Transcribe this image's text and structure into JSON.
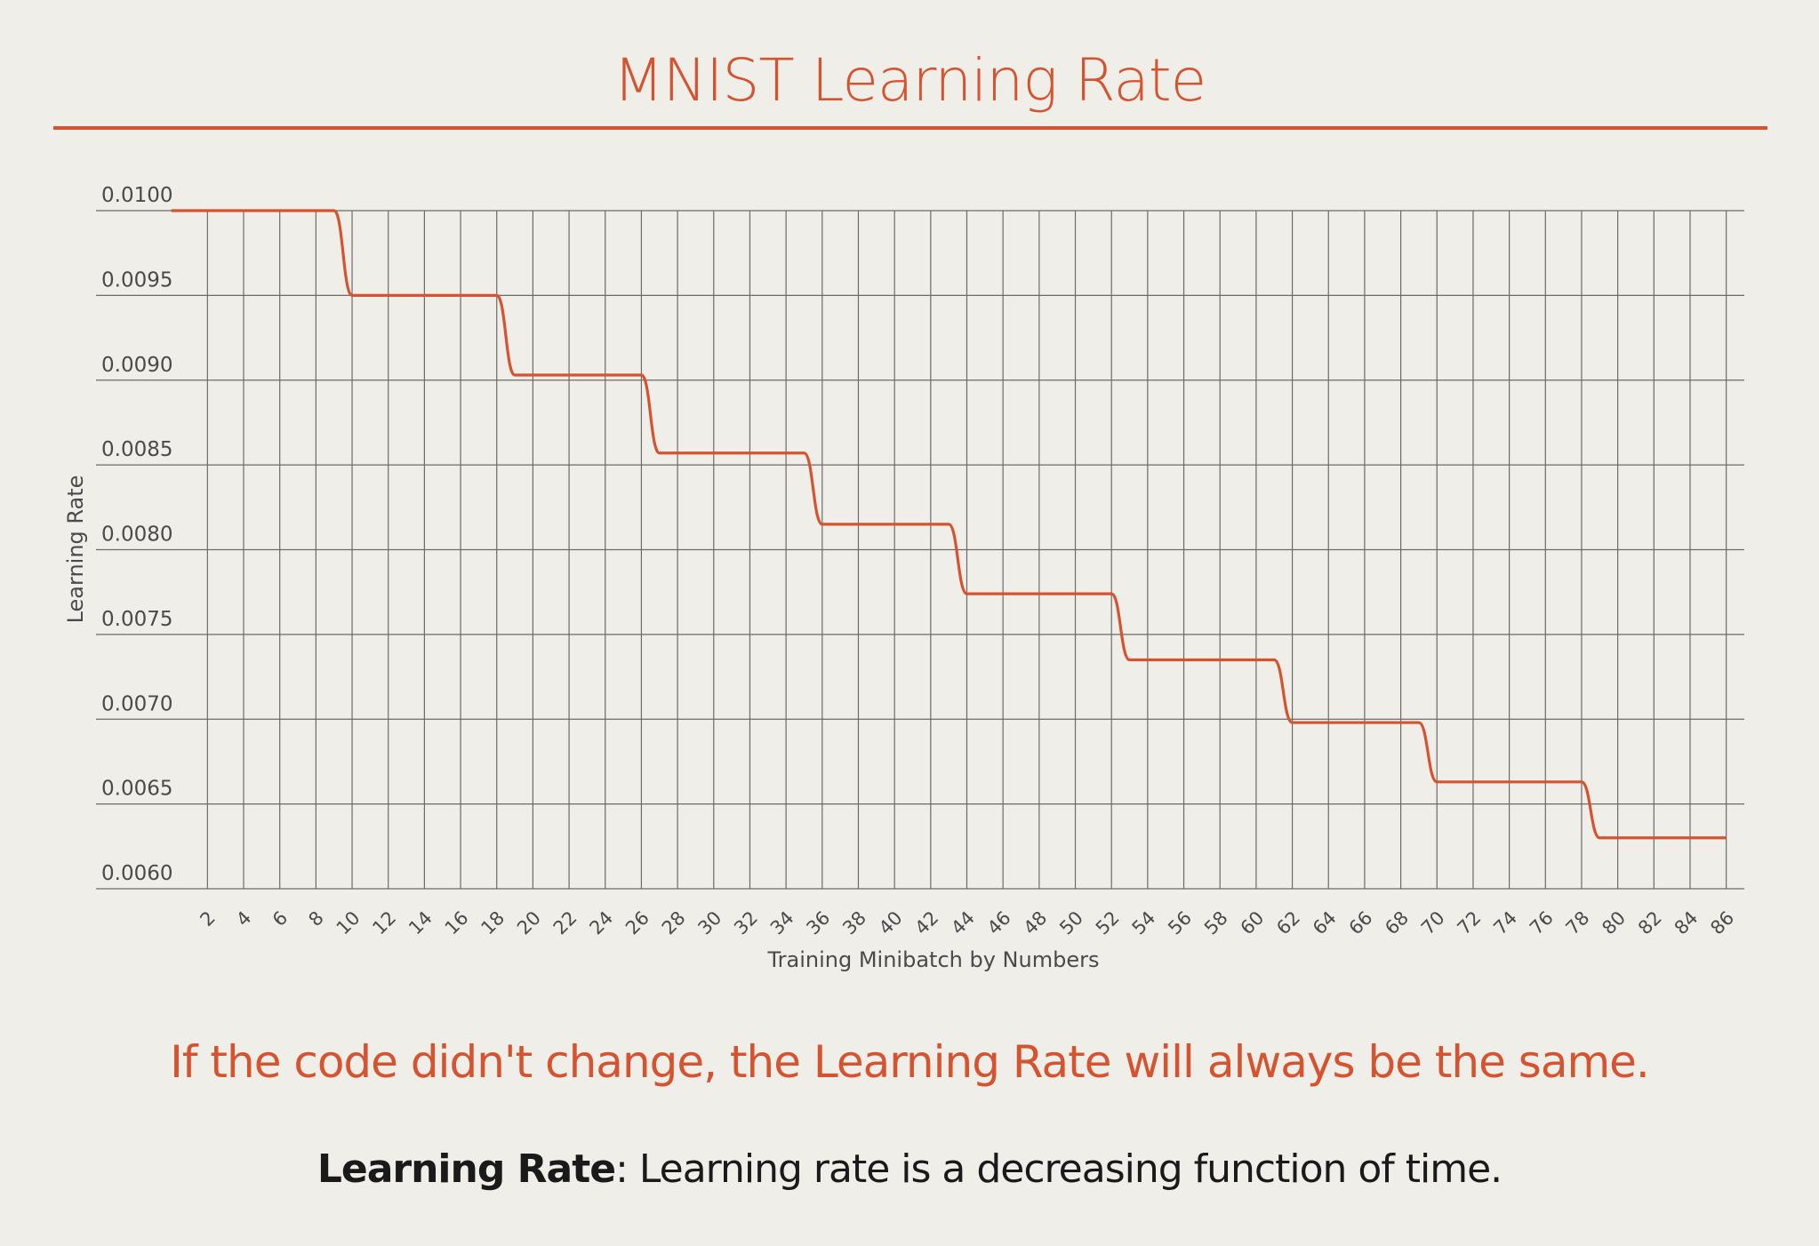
{
  "chart_data": {
    "type": "line",
    "title": "MNIST Learning Rate",
    "xlabel": "Training Minibatch by Numbers",
    "ylabel": "Learning Rate",
    "ylim": [
      0.006,
      0.01
    ],
    "xlim": [
      1,
      87
    ],
    "x_tick_labels": [
      "2",
      "4",
      "6",
      "8",
      "10",
      "12",
      "14",
      "16",
      "18",
      "20",
      "22",
      "24",
      "26",
      "28",
      "30",
      "32",
      "34",
      "36",
      "38",
      "40",
      "42",
      "44",
      "46",
      "48",
      "50",
      "52",
      "54",
      "56",
      "58",
      "60",
      "62",
      "64",
      "66",
      "68",
      "70",
      "72",
      "74",
      "76",
      "78",
      "80",
      "82",
      "84",
      "86"
    ],
    "y_tick_labels": [
      "0.0100",
      "0.0095",
      "0.0090",
      "0.0085",
      "0.0080",
      "0.0075",
      "0.0070",
      "0.0065",
      "0.0060"
    ],
    "grid": true,
    "line_color": "#d5532f",
    "steps": [
      {
        "x_start": 0,
        "x_end": 9,
        "value": 0.01
      },
      {
        "x_start": 10,
        "x_end": 18,
        "value": 0.0095
      },
      {
        "x_start": 19,
        "x_end": 26,
        "value": 0.00903
      },
      {
        "x_start": 27,
        "x_end": 35,
        "value": 0.00857
      },
      {
        "x_start": 36,
        "x_end": 43,
        "value": 0.00815
      },
      {
        "x_start": 44,
        "x_end": 52,
        "value": 0.00774
      },
      {
        "x_start": 53,
        "x_end": 61,
        "value": 0.00735
      },
      {
        "x_start": 62,
        "x_end": 69,
        "value": 0.00698
      },
      {
        "x_start": 70,
        "x_end": 78,
        "value": 0.00663
      },
      {
        "x_start": 79,
        "x_end": 86,
        "value": 0.0063
      }
    ]
  },
  "caption": "If the code didn't change, the Learning Rate will always be the same.",
  "definition": {
    "term": "Learning Rate",
    "text": ": Learning rate is a decreasing function of time."
  },
  "colors": {
    "accent": "#d5532f",
    "background": "#f0eee9",
    "grid": "#6b6b6b"
  }
}
